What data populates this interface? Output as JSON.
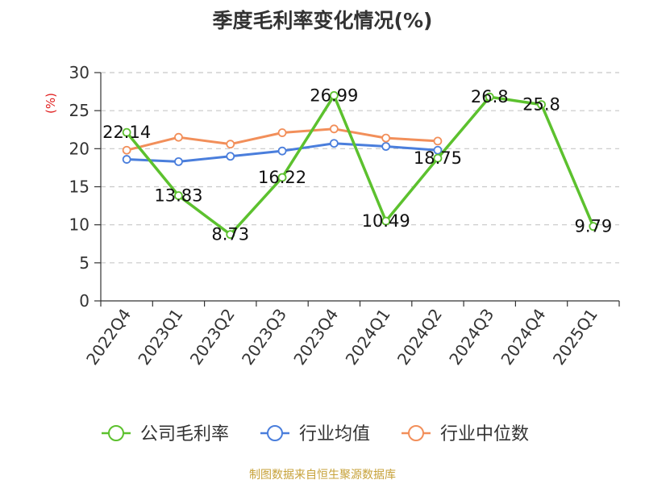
{
  "title": "季度毛利率变化情况(%)",
  "source": "制图数据来自恒生聚源数据库",
  "colors": {
    "公司毛利率": "#5cc12e",
    "行业均值": "#4a7edc",
    "行业中位数": "#f28f5a",
    "unit": "#e02020"
  },
  "chart_data": {
    "type": "line",
    "title": "季度毛利率变化情况(%)",
    "ylabel": "(%)",
    "xlabel": "",
    "ylim": [
      0,
      30
    ],
    "yticks": [
      0,
      5,
      10,
      15,
      20,
      25,
      30
    ],
    "grid": true,
    "legend_position": "bottom",
    "categories": [
      "2022Q4",
      "2023Q1",
      "2023Q2",
      "2023Q3",
      "2023Q4",
      "2024Q1",
      "2024Q2",
      "2024Q3",
      "2024Q4",
      "2025Q1"
    ],
    "series": [
      {
        "name": "公司毛利率",
        "values": [
          22.14,
          13.83,
          8.73,
          16.22,
          26.99,
          10.49,
          18.75,
          26.8,
          25.8,
          9.79
        ],
        "labels": [
          "22.14",
          "13.83",
          "8.73",
          "16.22",
          "26.99",
          "10.49",
          "18.75",
          "26.8",
          "25.8",
          "9.79"
        ]
      },
      {
        "name": "行业均值",
        "values": [
          18.6,
          18.3,
          19.0,
          19.7,
          20.7,
          20.3,
          19.8,
          null,
          null,
          null
        ]
      },
      {
        "name": "行业中位数",
        "values": [
          19.8,
          21.5,
          20.6,
          22.1,
          22.6,
          21.4,
          21.0,
          null,
          null,
          null
        ]
      }
    ]
  }
}
